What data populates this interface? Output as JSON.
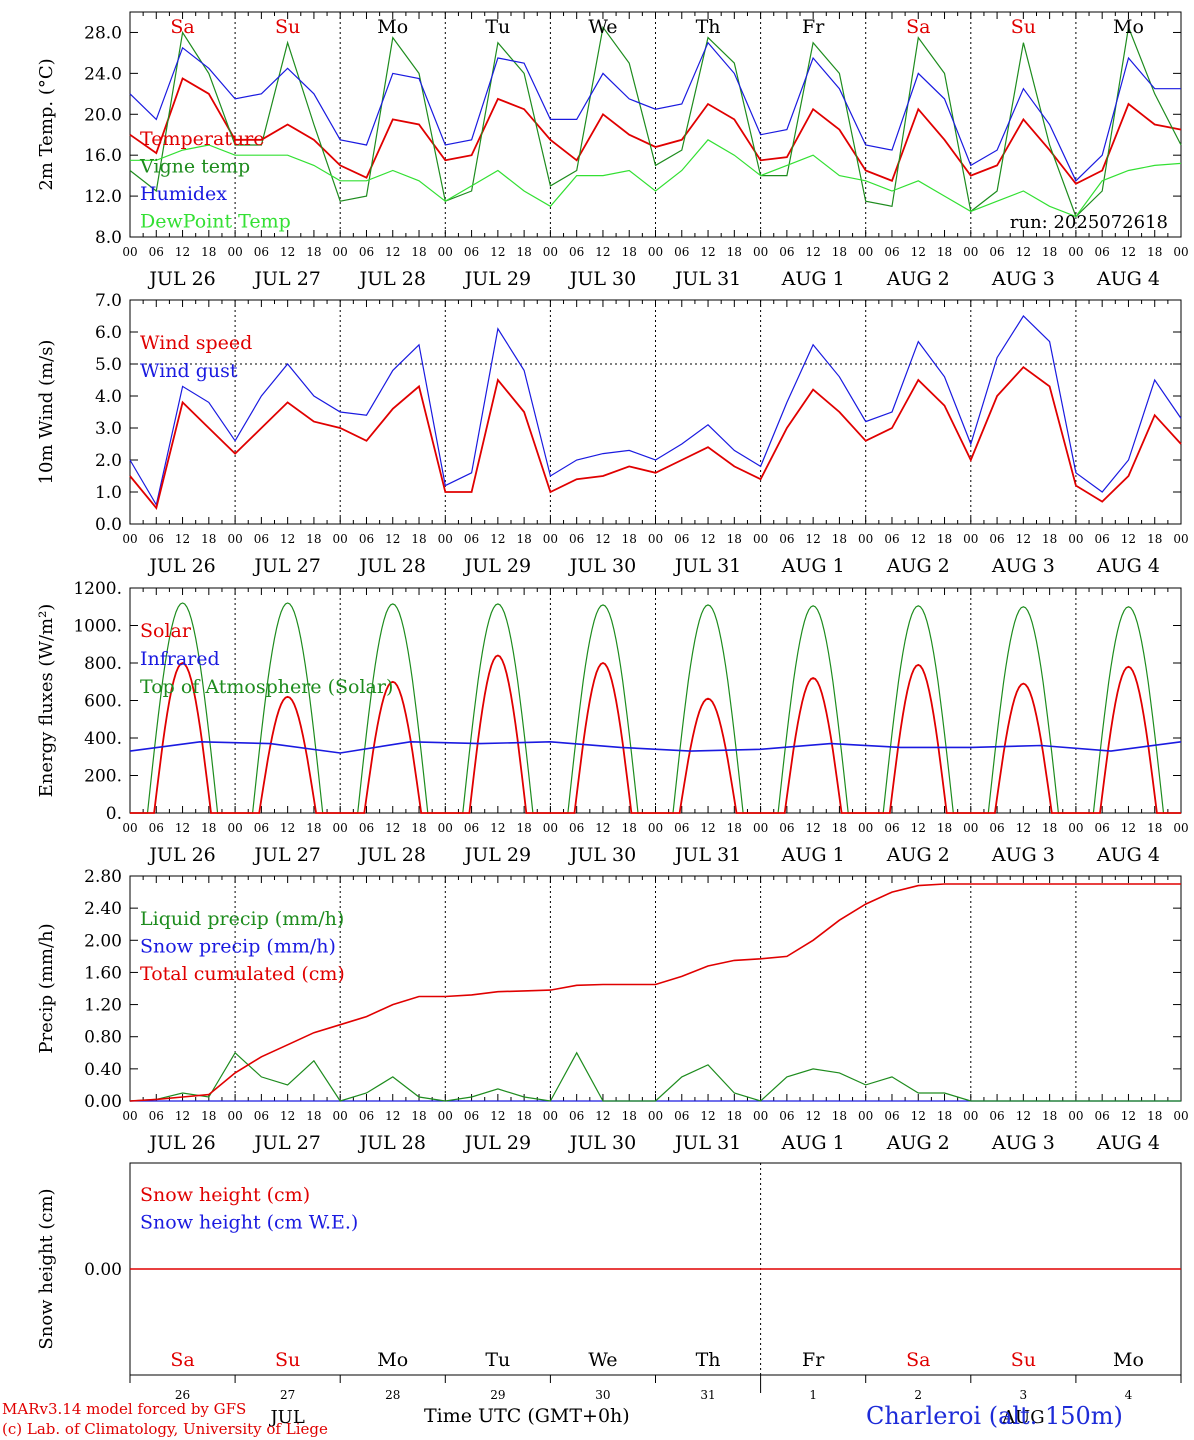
{
  "run_label": "run: 2025072618",
  "x_axis": {
    "tick_hours": [
      "00",
      "06",
      "12",
      "18"
    ],
    "day_labels": [
      "JUL 26",
      "JUL 27",
      "JUL 28",
      "JUL 29",
      "JUL 30",
      "JUL 31",
      "AUG  1",
      "AUG  2",
      "AUG  3",
      "AUG  4"
    ],
    "weekdays": [
      "Sa",
      "Su",
      "Mo",
      "Tu",
      "We",
      "Th",
      "Fr",
      "Sa",
      "Su",
      "Mo"
    ],
    "weekend_flags": [
      true,
      true,
      false,
      false,
      false,
      false,
      false,
      true,
      true,
      false
    ],
    "day_numbers": [
      "26",
      "27",
      "28",
      "29",
      "30",
      "31",
      "1",
      "2",
      "3",
      "4"
    ],
    "month_labels": [
      "JUL",
      "AUG"
    ],
    "title": "Time UTC (GMT+0h)"
  },
  "colors": {
    "red": "#e00000",
    "blue": "#1a1ae0",
    "darkgreen": "#1e8c1e",
    "lightgreen": "#33e033",
    "grid": "#000000"
  },
  "footer": {
    "credit_line1": "MARv3.14 model forced by GFS",
    "credit_line2": "(c) Lab. of Climatology, University of Liege",
    "station": "Charleroi (alt. 150m)"
  },
  "chart_data": [
    {
      "type": "line",
      "ylabel": "2m Temp. (°C)",
      "ylim": [
        8,
        30
      ],
      "yticks": [
        "8.0",
        "12.0",
        "16.0",
        "20.0",
        "24.0",
        "28.0"
      ],
      "legend": [
        "Temperature",
        "Vigne temp",
        "Humidex",
        "DewPoint Temp"
      ],
      "x_hours": [
        0,
        6,
        12,
        18,
        24,
        30,
        36,
        42,
        48,
        54,
        60,
        66,
        72,
        78,
        84,
        90,
        96,
        102,
        108,
        114,
        120,
        126,
        132,
        138,
        144,
        150,
        156,
        162,
        168,
        174,
        180,
        186,
        192,
        198,
        204,
        210,
        216,
        222,
        228,
        234,
        240
      ],
      "series": [
        {
          "name": "Temperature",
          "color": "red",
          "values": [
            18.0,
            16.2,
            23.5,
            22.0,
            17.5,
            17.5,
            19.0,
            17.5,
            15.0,
            13.8,
            19.5,
            19.0,
            15.5,
            16.0,
            21.5,
            20.5,
            17.5,
            15.5,
            20.0,
            18.0,
            16.8,
            17.5,
            21.0,
            19.5,
            15.5,
            15.8,
            20.5,
            18.5,
            14.5,
            13.5,
            20.5,
            17.5,
            14.0,
            15.0,
            19.5,
            16.5,
            13.2,
            14.5,
            21.0,
            19.0,
            18.5
          ]
        },
        {
          "name": "Vigne temp",
          "color": "darkgreen",
          "values": [
            14.5,
            12.5,
            28.0,
            24.0,
            17.0,
            17.0,
            27.0,
            19.0,
            11.5,
            12.0,
            27.5,
            24.0,
            11.5,
            12.5,
            27.0,
            24.0,
            13.0,
            14.5,
            28.5,
            25.0,
            15.0,
            16.5,
            27.5,
            25.0,
            14.0,
            14.0,
            27.0,
            24.0,
            11.5,
            11.0,
            27.5,
            24.0,
            10.5,
            12.5,
            27.0,
            17.0,
            10.0,
            12.5,
            28.5,
            22.0,
            17.0
          ]
        },
        {
          "name": "Humidex",
          "color": "blue",
          "values": [
            22.0,
            19.5,
            26.5,
            24.5,
            21.5,
            22.0,
            24.5,
            22.0,
            17.5,
            17.0,
            24.0,
            23.5,
            17.0,
            17.5,
            25.5,
            25.0,
            19.5,
            19.5,
            24.0,
            21.5,
            20.5,
            21.0,
            27.0,
            24.0,
            18.0,
            18.5,
            25.5,
            22.5,
            17.0,
            16.5,
            24.0,
            21.5,
            15.0,
            16.5,
            22.5,
            19.0,
            13.5,
            16.0,
            25.5,
            22.5,
            22.5
          ]
        },
        {
          "name": "DewPoint Temp",
          "color": "lightgreen",
          "values": [
            15.5,
            15.5,
            16.5,
            17.0,
            16.0,
            16.0,
            16.0,
            15.0,
            13.5,
            13.5,
            14.5,
            13.5,
            11.5,
            13.0,
            14.5,
            12.5,
            11.0,
            14.0,
            14.0,
            14.5,
            12.5,
            14.5,
            17.5,
            16.0,
            14.0,
            15.0,
            16.0,
            14.0,
            13.5,
            12.5,
            13.5,
            12.0,
            10.5,
            11.5,
            12.5,
            11.0,
            10.0,
            13.5,
            14.5,
            15.0,
            15.2
          ]
        }
      ]
    },
    {
      "type": "line",
      "ylabel": "10m Wind (m/s)",
      "ylim": [
        0,
        7
      ],
      "yticks": [
        "0.0",
        "1.0",
        "2.0",
        "3.0",
        "4.0",
        "5.0",
        "6.0",
        "7.0"
      ],
      "reference_line": 5.0,
      "legend": [
        "Wind speed",
        "Wind gust"
      ],
      "x_hours": [
        0,
        6,
        12,
        18,
        24,
        30,
        36,
        42,
        48,
        54,
        60,
        66,
        72,
        78,
        84,
        90,
        96,
        102,
        108,
        114,
        120,
        126,
        132,
        138,
        144,
        150,
        156,
        162,
        168,
        174,
        180,
        186,
        192,
        198,
        204,
        210,
        216,
        222,
        228,
        234,
        240
      ],
      "series": [
        {
          "name": "Wind speed",
          "color": "red",
          "values": [
            1.5,
            0.5,
            3.8,
            3.0,
            2.2,
            3.0,
            3.8,
            3.2,
            3.0,
            2.6,
            3.6,
            4.3,
            1.0,
            1.0,
            4.5,
            3.5,
            1.0,
            1.4,
            1.5,
            1.8,
            1.6,
            2.0,
            2.4,
            1.8,
            1.4,
            3.0,
            4.2,
            3.5,
            2.6,
            3.0,
            4.5,
            3.7,
            2.0,
            4.0,
            4.9,
            4.3,
            1.2,
            0.7,
            1.5,
            3.4,
            2.5
          ]
        },
        {
          "name": "Wind gust",
          "color": "blue",
          "values": [
            2.0,
            0.6,
            4.3,
            3.8,
            2.6,
            4.0,
            5.0,
            4.0,
            3.5,
            3.4,
            4.8,
            5.6,
            1.2,
            1.6,
            6.1,
            4.8,
            1.5,
            2.0,
            2.2,
            2.3,
            2.0,
            2.5,
            3.1,
            2.3,
            1.8,
            3.8,
            5.6,
            4.6,
            3.2,
            3.5,
            5.7,
            4.6,
            2.5,
            5.2,
            6.5,
            5.7,
            1.6,
            1.0,
            2.0,
            4.5,
            3.3
          ]
        }
      ]
    },
    {
      "type": "line",
      "ylabel": "Energy fluxes (W/m²)",
      "ylim": [
        0,
        1200
      ],
      "yticks": [
        "0.",
        "200.",
        "400.",
        "600.",
        "800.",
        "1000.",
        "1200."
      ],
      "legend": [
        "Solar",
        "Infrared",
        "Top of Atmosphere (Solar)"
      ],
      "daily_peaks": [
        {
          "name": "Top of Atmosphere (Solar)",
          "color": "darkgreen",
          "values": [
            1120,
            1120,
            1115,
            1115,
            1110,
            1110,
            1105,
            1105,
            1100,
            1100
          ]
        },
        {
          "name": "Solar",
          "color": "red",
          "values": [
            800,
            620,
            700,
            840,
            800,
            610,
            720,
            790,
            690,
            780
          ]
        }
      ],
      "series": [
        {
          "name": "Infrared",
          "color": "blue",
          "values": [
            330,
            380,
            370,
            320,
            380,
            370,
            380,
            350,
            330,
            340,
            370,
            350,
            350,
            360,
            330,
            380
          ]
        }
      ]
    },
    {
      "type": "line",
      "ylabel": "Precip (mm/h)",
      "ylim": [
        0,
        2.8
      ],
      "yticks": [
        "0.00",
        "0.40",
        "0.80",
        "1.20",
        "1.60",
        "2.00",
        "2.40",
        "2.80"
      ],
      "legend": [
        "Liquid precip (mm/h)",
        "Snow precip (mm/h)",
        "Total cumulated (cm)"
      ],
      "x_hours": [
        0,
        6,
        12,
        18,
        24,
        30,
        36,
        42,
        48,
        54,
        60,
        66,
        72,
        78,
        84,
        90,
        96,
        102,
        108,
        114,
        120,
        126,
        132,
        138,
        144,
        150,
        156,
        162,
        168,
        174,
        180,
        186,
        192,
        198,
        204,
        210,
        216,
        222,
        228,
        234,
        240
      ],
      "series": [
        {
          "name": "Total cumulated (cm)",
          "color": "red",
          "values": [
            0.0,
            0.02,
            0.05,
            0.08,
            0.35,
            0.55,
            0.7,
            0.85,
            0.95,
            1.05,
            1.2,
            1.3,
            1.3,
            1.32,
            1.36,
            1.37,
            1.38,
            1.44,
            1.45,
            1.45,
            1.45,
            1.55,
            1.68,
            1.75,
            1.77,
            1.8,
            2.0,
            2.25,
            2.45,
            2.6,
            2.68,
            2.7,
            2.7,
            2.7,
            2.7,
            2.7,
            2.7,
            2.7,
            2.7,
            2.7,
            2.7
          ]
        },
        {
          "name": "Liquid precip (mm/h)",
          "color": "darkgreen",
          "values": [
            0,
            0.02,
            0.1,
            0.05,
            0.6,
            0.3,
            0.2,
            0.5,
            0,
            0.1,
            0.3,
            0.05,
            0,
            0.05,
            0.15,
            0.05,
            0,
            0.6,
            0,
            0,
            0,
            0.3,
            0.45,
            0.1,
            0,
            0.3,
            0.4,
            0.35,
            0.2,
            0.3,
            0.1,
            0.1,
            0,
            0,
            0,
            0,
            0,
            0,
            0,
            0,
            0
          ]
        },
        {
          "name": "Snow precip (mm/h)",
          "color": "blue",
          "values": [
            0,
            0,
            0,
            0,
            0,
            0,
            0,
            0,
            0,
            0,
            0,
            0,
            0,
            0,
            0,
            0,
            0,
            0,
            0,
            0,
            0,
            0,
            0,
            0,
            0,
            0,
            0,
            0,
            0,
            0,
            0,
            0,
            0,
            0,
            0,
            0,
            0,
            0,
            0,
            0,
            0
          ]
        }
      ]
    },
    {
      "type": "line",
      "ylabel": "Snow height (cm)",
      "ylim": [
        -1,
        1
      ],
      "yticks": [
        "0.00"
      ],
      "legend": [
        "Snow height (cm)",
        "Snow height (cm W.E.)"
      ],
      "series": [
        {
          "name": "Snow height (cm)",
          "color": "red",
          "values": [
            0,
            0
          ]
        },
        {
          "name": "Snow height (cm W.E.)",
          "color": "blue",
          "values": [
            0,
            0
          ]
        }
      ]
    }
  ]
}
